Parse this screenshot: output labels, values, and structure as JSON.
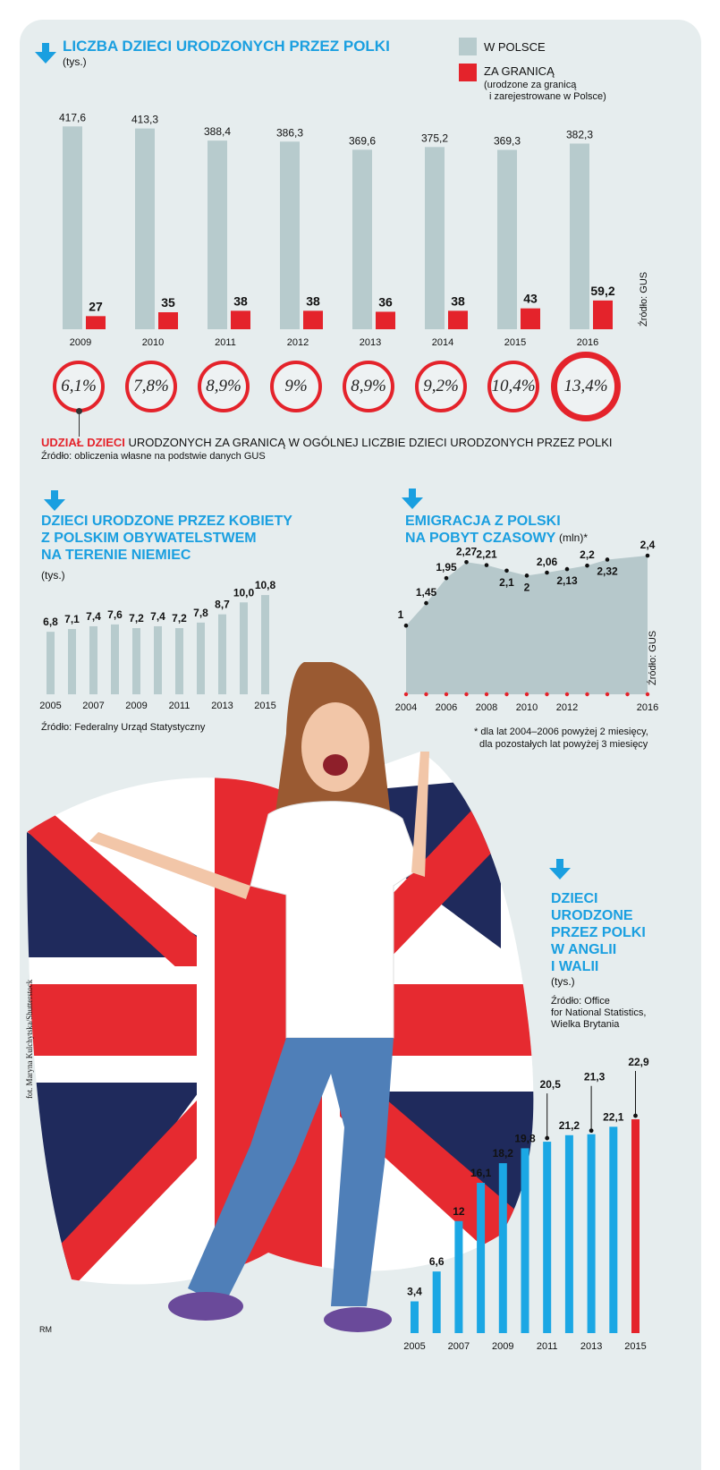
{
  "colors": {
    "gray_bar": "#b7cbcd",
    "red": "#e4232b",
    "blue": "#1ba7e4",
    "title_blue": "#1a9fe0",
    "area": "#b6c8cb"
  },
  "chart1": {
    "title": "LICZBA DZIECI URODZONYCH PRZEZ POLKI",
    "unit": "(tys.)",
    "legend_poland": "W POLSCE",
    "legend_abroad": "ZA GRANICĄ",
    "legend_abroad_note1": "(urodzone za granicą",
    "legend_abroad_note2": "i zarejestrowane w Polsce)",
    "source": "Źródło: GUS"
  },
  "shares": {
    "title_red": "UDZIAŁ DZIECI",
    "title_rest": " URODZONYCH ZA GRANICĄ W OGÓLNEJ LICZBIE DZIECI URODZONYCH PRZEZ POLKI",
    "source": "Źródło: obliczenia własne na podstwie danych GUS",
    "values": [
      "6,1%",
      "7,8%",
      "8,9%",
      "9%",
      "8,9%",
      "9,2%",
      "10,4%",
      "13,4%"
    ]
  },
  "chart2": {
    "title1": "DZIECI URODZONE PRZEZ KOBIETY",
    "title2": "Z POLSKIM OBYWATELSTWEM",
    "title3": "NA TERENIE NIEMIEC",
    "unit": "(tys.)",
    "source": "Źródło: Federalny Urząd Statystyczny"
  },
  "chart3": {
    "title1": "EMIGRACJA Z POLSKI",
    "title2": "NA POBYT CZASOWY",
    "unit": "(mln)*",
    "source": "Źródło: GUS",
    "note1": "* dla lat 2004–2006 powyżej 2 miesięcy,",
    "note2": "dla pozostałych lat powyżej 3 miesięcy"
  },
  "chart4": {
    "title1": "DZIECI",
    "title2": "URODZONE",
    "title3": "PRZEZ POLKI",
    "title4": "W ANGLII",
    "title5": "I WALII",
    "unit": "(tys.)",
    "source1": "Źródło: Office",
    "source2": "for National Statistics,",
    "source3": "Wielka Brytania"
  },
  "photo_credit": "fot. Maryna Kulchytska/Shutterstock",
  "author": "RM",
  "chart_data": [
    {
      "type": "bar",
      "title": "LICZBA DZIECI URODZONYCH PRZEZ POLKI",
      "categories": [
        "2009",
        "2010",
        "2011",
        "2012",
        "2013",
        "2014",
        "2015",
        "2016"
      ],
      "series": [
        {
          "name": "W POLSCE",
          "values": [
            417.6,
            413.3,
            388.4,
            386.3,
            369.6,
            375.2,
            369.3,
            382.3
          ],
          "labels": [
            "417,6",
            "413,3",
            "388,4",
            "386,3",
            "369,6",
            "375,2",
            "369,3",
            "382,3"
          ]
        },
        {
          "name": "ZA GRANICĄ",
          "values": [
            27,
            35,
            38,
            38,
            36,
            38,
            43,
            59.2
          ],
          "labels": [
            "27",
            "35",
            "38",
            "38",
            "36",
            "38",
            "43",
            "59,2"
          ]
        }
      ],
      "ylim": [
        0,
        420
      ]
    },
    {
      "type": "bar",
      "title": "DZIECI URODZONE PRZEZ KOBIETY Z POLSKIM OBYWATELSTWEM NA TERENIE NIEMIEC",
      "categories": [
        "2005",
        "2006",
        "2007",
        "2008",
        "2009",
        "2010",
        "2011",
        "2012",
        "2013",
        "2014",
        "2015"
      ],
      "tick_labels": [
        "2005",
        "",
        "2007",
        "",
        "2009",
        "",
        "2011",
        "",
        "2013",
        "",
        "2015"
      ],
      "values": [
        6.8,
        7.1,
        7.4,
        7.6,
        7.2,
        7.4,
        7.2,
        7.8,
        8.7,
        10.0,
        10.8
      ],
      "labels": [
        "6,8",
        "7,1",
        "7,4",
        "7,6",
        "7,2",
        "7,4",
        "7,2",
        "7,8",
        "8,7",
        "10,0",
        "10,8"
      ],
      "ylim": [
        0,
        11
      ]
    },
    {
      "type": "area",
      "title": "EMIGRACJA Z POLSKI NA POBYT CZASOWY",
      "x": [
        "2004",
        "2005",
        "2006",
        "2007",
        "2008",
        "2009",
        "2010",
        "2011",
        "2012",
        "2013",
        "2014",
        "2015",
        "2016"
      ],
      "tick_labels": [
        "2004",
        "",
        "2006",
        "",
        "2008",
        "",
        "2010",
        "",
        "2012",
        "",
        "",
        "",
        "2016"
      ],
      "values": [
        1.0,
        1.45,
        1.95,
        2.27,
        2.21,
        2.1,
        2.0,
        2.06,
        2.13,
        2.2,
        2.32,
        null,
        2.4
      ],
      "labels": [
        "1",
        "1,45",
        "1,95",
        "2,27",
        "2,21",
        "2,1",
        "2",
        "2,06",
        "2,13",
        "2,2",
        "2,32",
        "",
        "2,4"
      ],
      "ylim": [
        0,
        2.5
      ]
    },
    {
      "type": "bar",
      "title": "DZIECI URODZONE PRZEZ POLKI W ANGLII I WALII",
      "categories": [
        "2005",
        "2006",
        "2007",
        "2008",
        "2009",
        "2010",
        "2011",
        "2012",
        "2013",
        "2014",
        "2015"
      ],
      "tick_labels": [
        "2005",
        "",
        "2007",
        "",
        "2009",
        "",
        "2011",
        "",
        "2013",
        "",
        "2015"
      ],
      "values": [
        3.4,
        6.6,
        12,
        16.1,
        18.2,
        19.8,
        20.5,
        21.2,
        21.3,
        22.1,
        22.9
      ],
      "labels": [
        "3,4",
        "6,6",
        "12",
        "16,1",
        "18,2",
        "19,8",
        "20,5",
        "21,2",
        "21,3",
        "22,1",
        "22,9"
      ],
      "ylim": [
        0,
        23
      ]
    }
  ]
}
